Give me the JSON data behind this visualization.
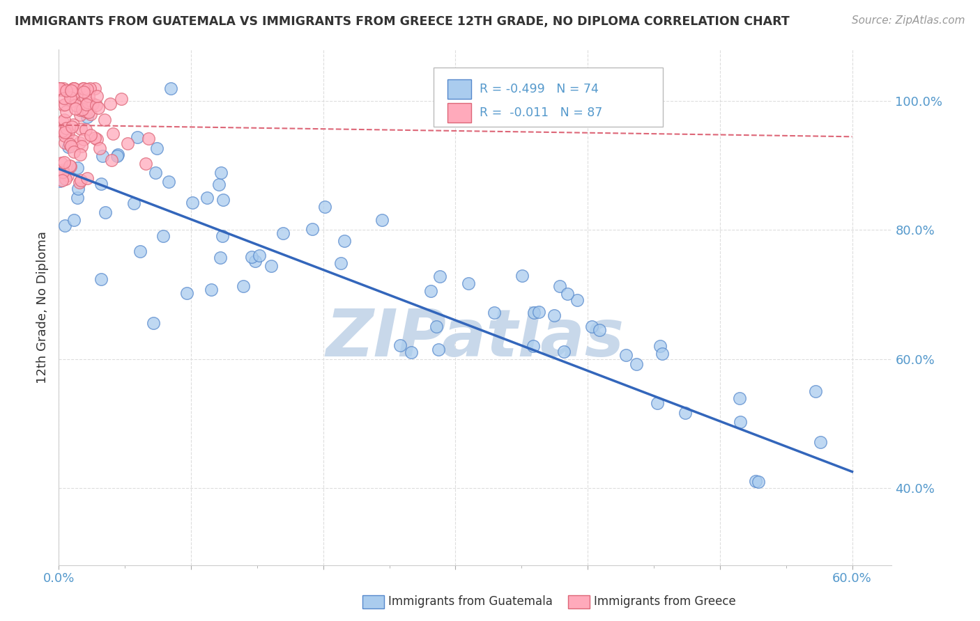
{
  "title": "IMMIGRANTS FROM GUATEMALA VS IMMIGRANTS FROM GREECE 12TH GRADE, NO DIPLOMA CORRELATION CHART",
  "source": "Source: ZipAtlas.com",
  "ylabel": "12th Grade, No Diploma",
  "xlim": [
    0.0,
    0.63
  ],
  "ylim": [
    0.28,
    1.08
  ],
  "yticks": [
    0.4,
    0.6,
    0.8,
    1.0
  ],
  "ytick_labels": [
    "40.0%",
    "60.0%",
    "80.0%",
    "100.0%"
  ],
  "color_blue_fill": "#aaccee",
  "color_blue_edge": "#5588cc",
  "color_blue_line": "#3366bb",
  "color_pink_fill": "#ffaabb",
  "color_pink_edge": "#dd6677",
  "color_pink_line": "#dd6677",
  "color_watermark": "#c8d8ea",
  "background_color": "#ffffff",
  "grid_color": "#dddddd",
  "text_color": "#333333",
  "axis_color": "#5599cc",
  "blue_trend_y0": 0.895,
  "blue_trend_y1": 0.425,
  "pink_trend_y0": 0.963,
  "pink_trend_y1": 0.945,
  "legend_blue_R": "R = -0.499",
  "legend_blue_N": "N = 74",
  "legend_pink_R": "R =  -0.011",
  "legend_pink_N": "N = 87",
  "bottom_label_blue": "Immigrants from Guatemala",
  "bottom_label_pink": "Immigrants from Greece"
}
